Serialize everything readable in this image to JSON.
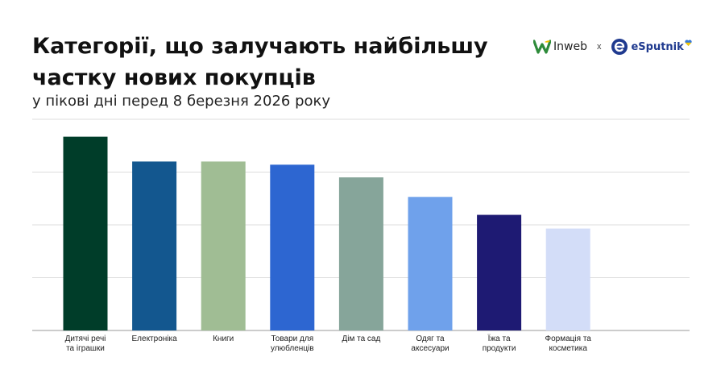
{
  "header": {
    "title_lines": [
      "Категорії, що залучають найбільшу",
      "частку нових покупців"
    ],
    "subtitle": "у пікові дні перед 8 березня 2026 року"
  },
  "logos": {
    "left": {
      "text": "Inweb",
      "icon": "w-leaf-icon",
      "color": "#2e8b3a"
    },
    "separator": "x",
    "right": {
      "text": "eSputnik",
      "icon": "esputnik-e-icon",
      "color": "#1f3a8f"
    }
  },
  "chart_data": {
    "type": "bar",
    "categories": [
      "Дитячі речі та іграшки",
      "Електроніка",
      "Книги",
      "Товари для улюбленців",
      "Дім та сад",
      "Одяг та аксесуари",
      "Їжа та продукти",
      "Формація та косметика"
    ],
    "category_display": [
      "Дитячі речі\nта іграшки",
      "Електроніка",
      "Книги",
      "Товари для\nулюбленців",
      "Дім та сад",
      "Одяг та\nаксесуари",
      "Їжа та\nпродукти",
      "Формація та\nкосметика"
    ],
    "values": [
      3.67,
      3.2,
      3.2,
      3.14,
      2.9,
      2.53,
      2.19,
      1.93
    ],
    "colors": [
      "#003d29",
      "#13578f",
      "#a0bd94",
      "#2d66d1",
      "#86a59a",
      "#6fa1eb",
      "#1e1a73",
      "#d3ddf8"
    ],
    "ylim": [
      0,
      4
    ],
    "grid": true,
    "legend": "none",
    "axis_labels_shown": false
  }
}
